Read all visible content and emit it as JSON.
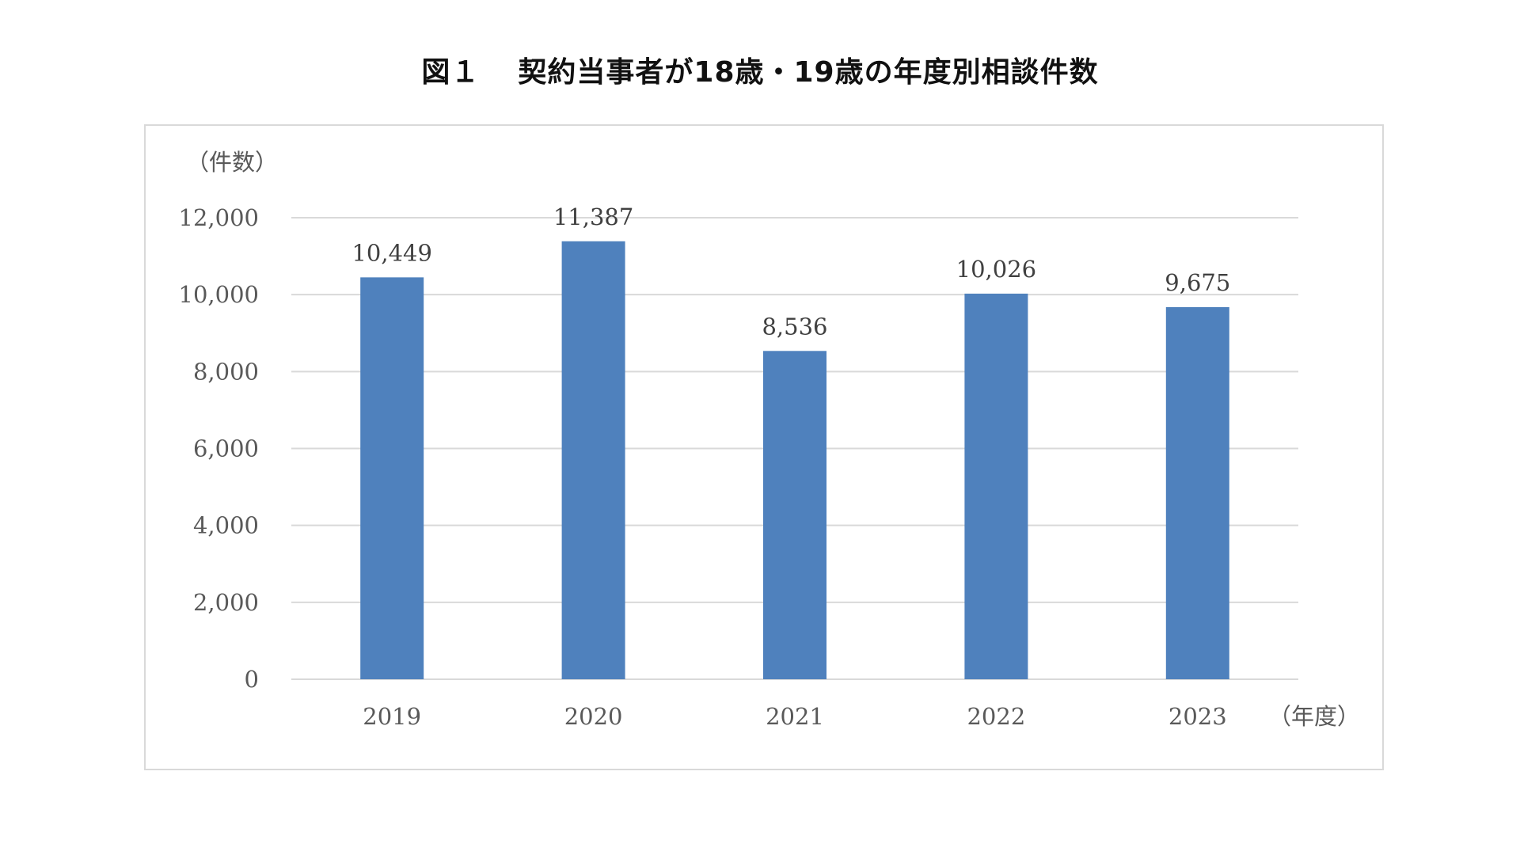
{
  "title": {
    "figure_no": "図１",
    "text": "契約当事者が18歳・19歳の年度別相談件数"
  },
  "colors": {
    "bar": "#4f81bd",
    "grid": "#d9d9d9",
    "frame": "#d9d9d9",
    "axis_text": "#595959"
  },
  "chart_data": {
    "type": "bar",
    "title": "契約当事者が18歳・19歳の年度別相談件数",
    "ylabel": "（件数）",
    "xlabel": "（年度）",
    "categories": [
      "2019",
      "2020",
      "2021",
      "2022",
      "2023"
    ],
    "values": [
      10449,
      11387,
      8536,
      10026,
      9675
    ],
    "value_labels": [
      "10,449",
      "11,387",
      "8,536",
      "10,026",
      "9,675"
    ],
    "ylim": [
      0,
      12000
    ],
    "yticks": [
      0,
      2000,
      4000,
      6000,
      8000,
      10000,
      12000
    ],
    "ytick_labels": [
      "0",
      "2,000",
      "4,000",
      "6,000",
      "8,000",
      "10,000",
      "12,000"
    ],
    "grid": true,
    "legend": "none"
  }
}
